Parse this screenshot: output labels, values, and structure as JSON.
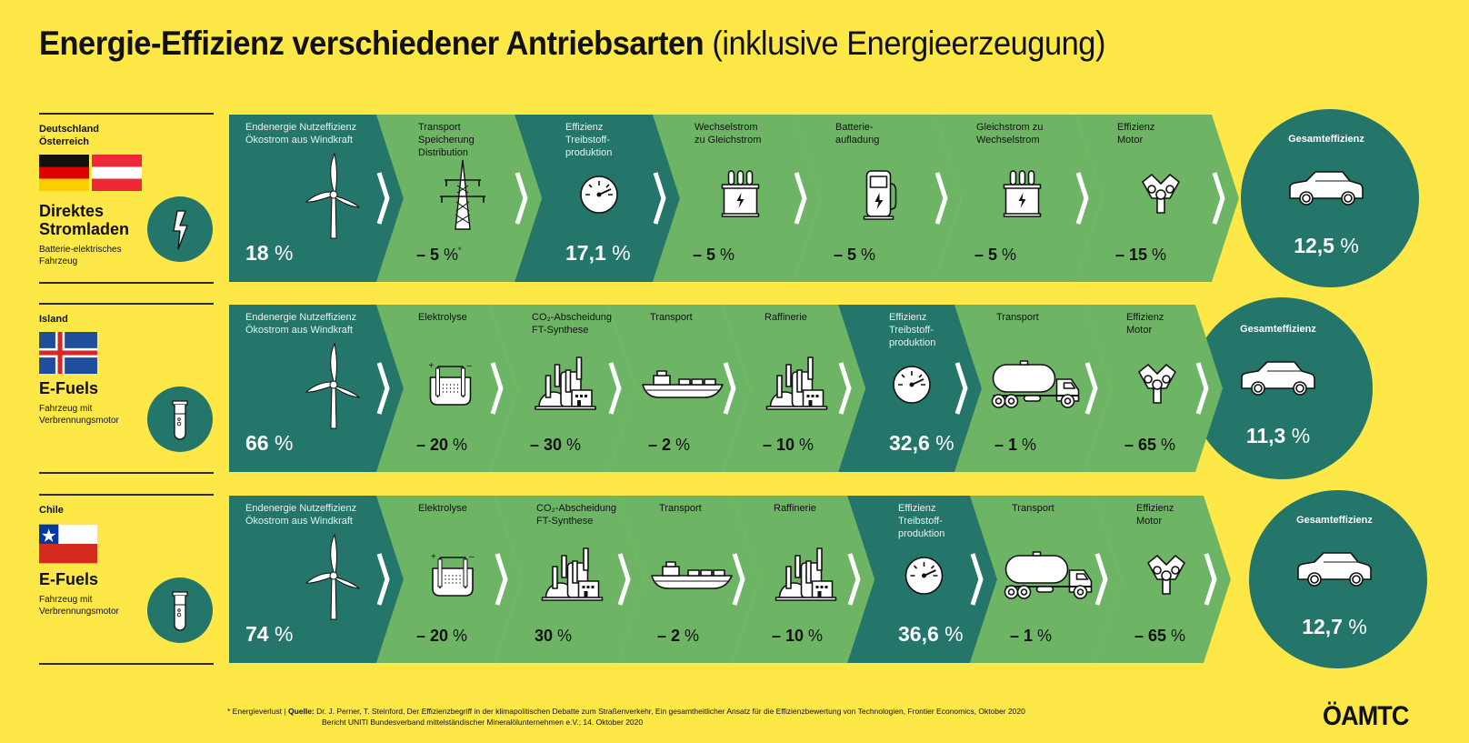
{
  "title": {
    "bold": "Energie-Effizienz verschiedener Antriebsarten",
    "light": "(inklusive Energieerzeugung)"
  },
  "colors": {
    "background": "#fde847",
    "dark_green": "#24756a",
    "light_green": "#6db565",
    "white": "#ffffff",
    "text_dark": "#111111"
  },
  "rows": [
    {
      "country": "Deutschland\nÖsterreich",
      "flags": [
        "germany",
        "austria"
      ],
      "mode": "Direktes\nStromladen",
      "desc": "Batterie-elektrisches\nFahrzeug",
      "mode_icon": "lightning-icon",
      "steps": [
        {
          "label": "Endenergie Nutzeffizienz\nÖkostrom aus Windkraft",
          "icon": "wind-turbine-icon",
          "value": "18 %",
          "tone": "dark"
        },
        {
          "label": "Transport\nSpeicherung\nDistribution",
          "icon": "power-pylon-icon",
          "value": "– 5 %*",
          "tone": "light"
        },
        {
          "label": "Effizienz\nTreibstoff-\nproduktion",
          "icon": "gauge-icon",
          "value": "17,1 %",
          "tone": "dark"
        },
        {
          "label": "Wechselstrom\nzu Gleichstrom",
          "icon": "transformer-icon",
          "value": "– 5 %",
          "tone": "light"
        },
        {
          "label": "Batterie-\naufladung",
          "icon": "charging-station-icon",
          "value": "– 5 %",
          "tone": "light"
        },
        {
          "label": "Gleichstrom zu\nWechselstrom",
          "icon": "transformer-icon",
          "value": "– 5 %",
          "tone": "light"
        },
        {
          "label": "Effizienz\nMotor",
          "icon": "engine-icon",
          "value": "– 15 %",
          "tone": "light"
        }
      ],
      "total": {
        "label": "Gesamteffizienz",
        "icon": "car-icon",
        "value": "12,5 %"
      }
    },
    {
      "country": "Island",
      "flags": [
        "iceland"
      ],
      "mode": "E-Fuels",
      "desc": "Fahrzeug mit\nVerbrennungsmotor",
      "mode_icon": "test-tube-icon",
      "steps": [
        {
          "label": "Endenergie Nutzeffizienz\nÖkostrom aus Windkraft",
          "icon": "wind-turbine-icon",
          "value": "66 %",
          "tone": "dark"
        },
        {
          "label": "Elektrolyse",
          "icon": "electrolysis-icon",
          "value": "– 20 %",
          "tone": "light"
        },
        {
          "label": "CO₂-Abscheidung\nFT-Synthese",
          "icon": "factory-icon",
          "value": "– 30 %",
          "tone": "light"
        },
        {
          "label": "Transport",
          "icon": "ship-icon",
          "value": "– 2 %",
          "tone": "light"
        },
        {
          "label": "Raffinerie",
          "icon": "refinery-icon",
          "value": "– 10 %",
          "tone": "light"
        },
        {
          "label": "Effizienz\nTreibstoff-\nproduktion",
          "icon": "gauge-icon",
          "value": "32,6 %",
          "tone": "dark"
        },
        {
          "label": "Transport",
          "icon": "tanker-truck-icon",
          "value": "– 1 %",
          "tone": "light"
        },
        {
          "label": "Effizienz\nMotor",
          "icon": "engine-icon",
          "value": "– 65 %",
          "tone": "light"
        }
      ],
      "total": {
        "label": "Gesamteffizienz",
        "icon": "car-icon",
        "value": "11,3 %"
      }
    },
    {
      "country": "Chile",
      "flags": [
        "chile"
      ],
      "mode": "E-Fuels",
      "desc": "Fahrzeug mit\nVerbrennungsmotor",
      "mode_icon": "test-tube-icon",
      "steps": [
        {
          "label": "Endenergie Nutzeffizienz\nÖkostrom aus Windkraft",
          "icon": "wind-turbine-icon",
          "value": "74 %",
          "tone": "dark"
        },
        {
          "label": "Elektrolyse",
          "icon": "electrolysis-icon",
          "value": "– 20 %",
          "tone": "light"
        },
        {
          "label": "CO₂-Abscheidung\nFT-Synthese",
          "icon": "factory-icon",
          "value": "30 %",
          "tone": "light"
        },
        {
          "label": "Transport",
          "icon": "ship-icon",
          "value": "– 2 %",
          "tone": "light"
        },
        {
          "label": "Raffinerie",
          "icon": "refinery-icon",
          "value": "– 10 %",
          "tone": "light"
        },
        {
          "label": "Effizienz\nTreibstoff-\nproduktion",
          "icon": "gauge-icon",
          "value": "36,6 %",
          "tone": "dark"
        },
        {
          "label": "Transport",
          "icon": "tanker-truck-icon",
          "value": "– 1 %",
          "tone": "light"
        },
        {
          "label": "Effizienz\nMotor",
          "icon": "engine-icon",
          "value": "– 65 %",
          "tone": "light"
        }
      ],
      "total": {
        "label": "Gesamteffizienz",
        "icon": "car-icon",
        "value": "12,7 %"
      }
    }
  ],
  "footer": {
    "asterisk_note": "* Energieverlust |",
    "source_label": "Quelle:",
    "source_line1": "Dr. J. Perner, T. Steinford, Der Effizienzbegriff in der klimapolitischen Debatte zum Straßenverkehr, Ein gesamtheitlicher Ansatz für die Effizienzbewertung von Technologien, Frontier Economics, Oktober 2020",
    "source_line2": "Bericht UNITI Bundesverband mittelständischer Mineralölunternehmen e.V.; 14. Oktober 2020"
  },
  "logo": "ÖAMTC"
}
